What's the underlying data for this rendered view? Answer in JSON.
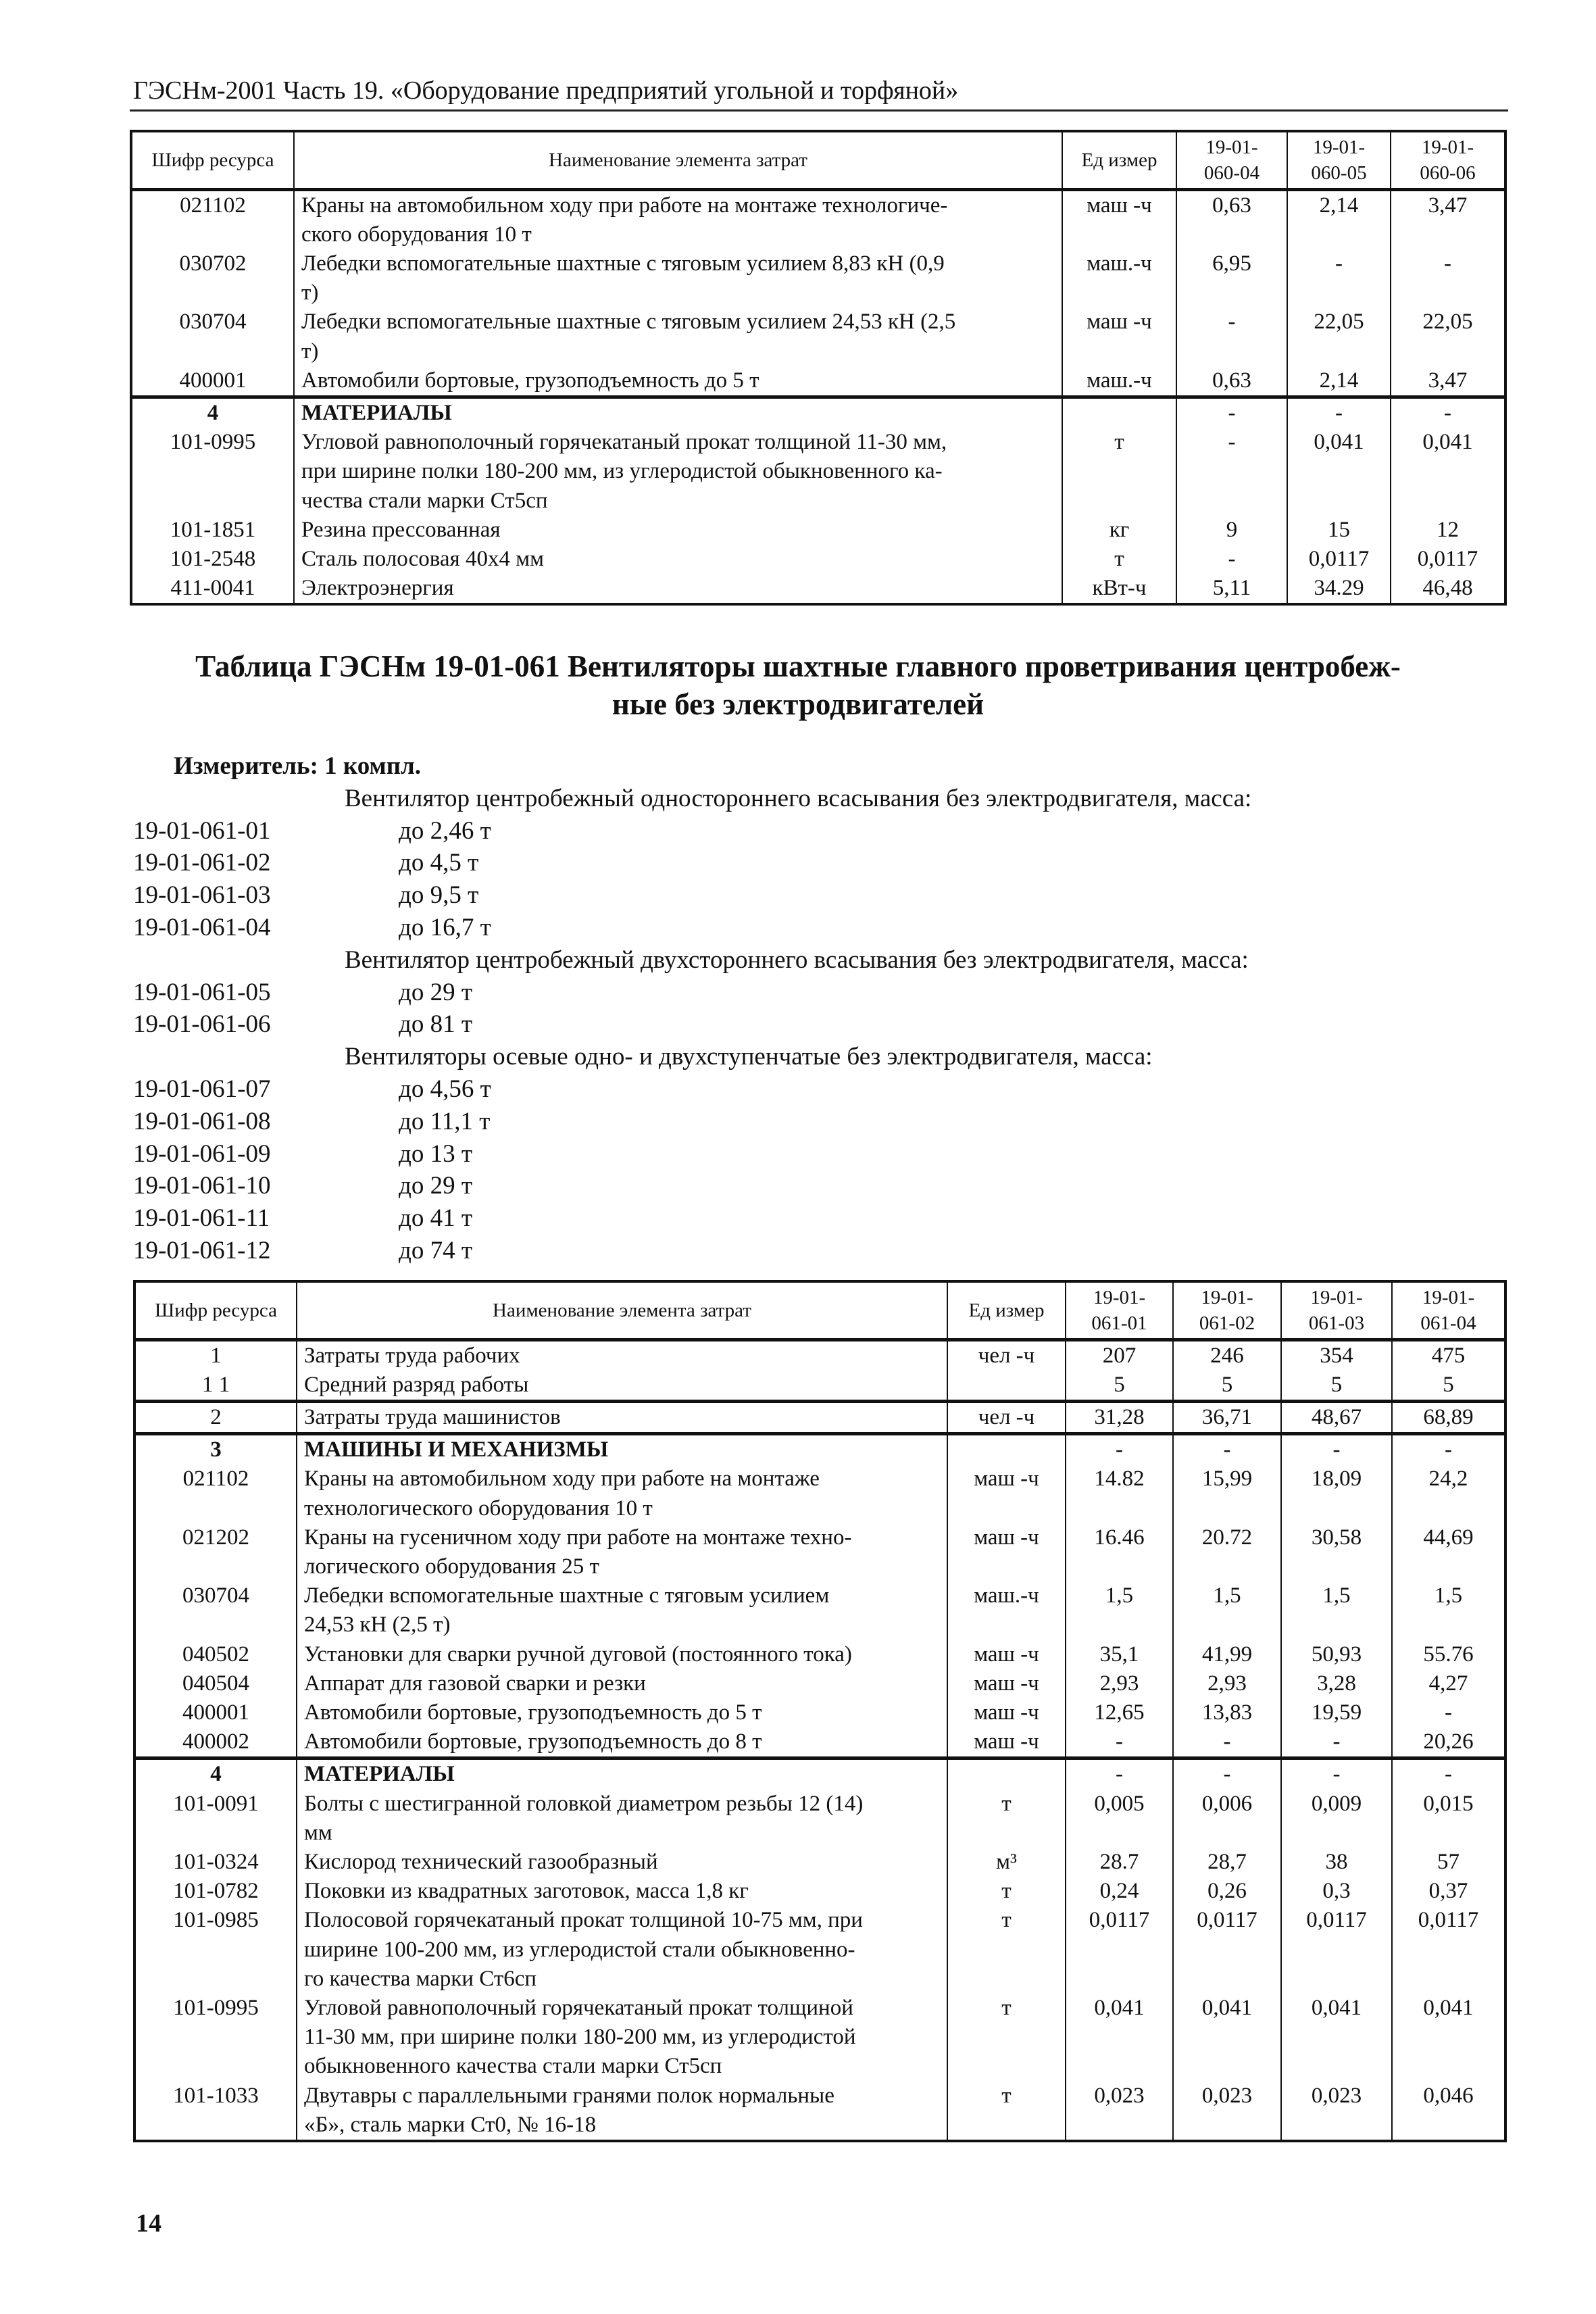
{
  "running_header": "ГЭСНм-2001 Часть 19. «Оборудование предприятий угольной и торфяной»",
  "table1": {
    "headers": [
      "Шифр ресурса",
      "Наименование элемента затрат",
      "Ед измер",
      "19-01-\n060-04",
      "19-01-\n060-05",
      "19-01-\n060-06"
    ],
    "groups": [
      [
        {
          "code": "021102",
          "name": "Краны на автомобильном ходу при работе на монтаже технологиче-\nского оборудования 10 т",
          "unit": "маш -ч",
          "values": [
            "0,63",
            "2,14",
            "3,47"
          ]
        },
        {
          "code": "030702",
          "name": "Лебедки вспомогательные шахтные с тяговым усилием 8,83 кН (0,9\nт)",
          "unit": "маш.-ч",
          "values": [
            "6,95",
            "-",
            "-"
          ]
        },
        {
          "code": "030704",
          "name": "Лебедки вспомогательные шахтные с тяговым усилием 24,53 кН (2,5\nт)",
          "unit": "маш -ч",
          "values": [
            "-",
            "22,05",
            "22,05"
          ]
        },
        {
          "code": "400001",
          "name": "Автомобили бортовые, грузоподъемность до 5 т",
          "unit": "маш.-ч",
          "values": [
            "0,63",
            "2,14",
            "3,47"
          ]
        }
      ],
      [
        {
          "code": "4",
          "name": "МАТЕРИАЛЫ",
          "unit": "",
          "values": [
            "-",
            "-",
            "-"
          ],
          "bold": true
        },
        {
          "code": "101-0995",
          "name": "Угловой равнополочный горячекатаный прокат толщиной 11-30 мм,\nпри ширине полки 180-200 мм, из углеродистой обыкновенного ка-\nчества стали марки Ст5сп",
          "unit": "т",
          "values": [
            "-",
            "0,041",
            "0,041"
          ]
        },
        {
          "code": "101-1851",
          "name": "Резина прессованная",
          "unit": "кг",
          "values": [
            "9",
            "15",
            "12"
          ]
        },
        {
          "code": "101-2548",
          "name": "Сталь полосовая 40х4 мм",
          "unit": "т",
          "values": [
            "-",
            "0,0117",
            "0,0117"
          ]
        },
        {
          "code": "411-0041",
          "name": "Электроэнергия",
          "unit": "кВт-ч",
          "values": [
            "5,11",
            "34.29",
            "46,48"
          ]
        }
      ]
    ]
  },
  "title": "Таблица ГЭСНм 19-01-061 Вентиляторы шахтные главного проветривания центробеж-\nные без электродвигателей",
  "measure": "Измеритель:  1 компл.",
  "list": [
    {
      "section": "Вентилятор центробежный одностороннего всасывания без электродвигателя, масса:"
    },
    {
      "code": "19-01-061-01",
      "value": "до 2,46 т"
    },
    {
      "code": "19-01-061-02",
      "value": "до 4,5 т"
    },
    {
      "code": "19-01-061-03",
      "value": "до 9,5 т"
    },
    {
      "code": "19-01-061-04",
      "value": "до 16,7 т"
    },
    {
      "section": "Вентилятор центробежный двухстороннего всасывания без электродвигателя, масса:"
    },
    {
      "code": "19-01-061-05",
      "value": "до 29 т"
    },
    {
      "code": "19-01-061-06",
      "value": "до 81 т"
    },
    {
      "section": "Вентиляторы осевые одно- и двухступенчатые без электродвигателя, масса:"
    },
    {
      "code": "19-01-061-07",
      "value": "до 4,56 т"
    },
    {
      "code": "19-01-061-08",
      "value": "до 11,1 т"
    },
    {
      "code": "19-01-061-09",
      "value": "до 13 т"
    },
    {
      "code": "19-01-061-10",
      "value": "до 29 т"
    },
    {
      "code": "19-01-061-11",
      "value": "до 41 т"
    },
    {
      "code": "19-01-061-12",
      "value": "до 74 т"
    }
  ],
  "table2": {
    "headers": [
      "Шифр ресурса",
      "Наименование элемента затрат",
      "Ед измер",
      "19-01-\n061-01",
      "19-01-\n061-02",
      "19-01-\n061-03",
      "19-01-\n061-04"
    ],
    "groups": [
      [
        {
          "code": "1",
          "name": "Затраты труда рабочих",
          "unit": "чел -ч",
          "values": [
            "207",
            "246",
            "354",
            "475"
          ]
        },
        {
          "code": "1 1",
          "name": "Средний разряд работы",
          "unit": "",
          "values": [
            "5",
            "5",
            "5",
            "5"
          ]
        }
      ],
      [
        {
          "code": "2",
          "name": "Затраты труда машинистов",
          "unit": "чел -ч",
          "values": [
            "31,28",
            "36,71",
            "48,67",
            "68,89"
          ]
        }
      ],
      [
        {
          "code": "3",
          "name": "МАШИНЫ И МЕХАНИЗМЫ",
          "unit": "",
          "values": [
            "-",
            "-",
            "-",
            "-"
          ],
          "bold": true
        },
        {
          "code": "021102",
          "name": "Краны на автомобильном ходу при работе на монтаже\nтехнологического оборудования 10 т",
          "unit": "маш -ч",
          "values": [
            "14.82",
            "15,99",
            "18,09",
            "24,2"
          ]
        },
        {
          "code": "021202",
          "name": "Краны на гусеничном ходу при работе на монтаже техно-\nлогического оборудования 25 т",
          "unit": "маш -ч",
          "values": [
            "16.46",
            "20.72",
            "30,58",
            "44,69"
          ]
        },
        {
          "code": "030704",
          "name": "Лебедки вспомогательные шахтные с тяговым усилием\n24,53 кН (2,5 т)",
          "unit": "маш.-ч",
          "values": [
            "1,5",
            "1,5",
            "1,5",
            "1,5"
          ]
        },
        {
          "code": "040502",
          "name": "Установки для сварки ручной дуговой (постоянного тока)",
          "unit": "маш -ч",
          "values": [
            "35,1",
            "41,99",
            "50,93",
            "55.76"
          ]
        },
        {
          "code": "040504",
          "name": "Аппарат для газовой сварки и резки",
          "unit": "маш -ч",
          "values": [
            "2,93",
            "2,93",
            "3,28",
            "4,27"
          ]
        },
        {
          "code": "400001",
          "name": "Автомобили бортовые, грузоподъемность до 5 т",
          "unit": "маш -ч",
          "values": [
            "12,65",
            "13,83",
            "19,59",
            "-"
          ]
        },
        {
          "code": "400002",
          "name": "Автомобили бортовые, грузоподъемность до 8 т",
          "unit": "маш -ч",
          "values": [
            "-",
            "-",
            "-",
            "20,26"
          ]
        }
      ],
      [
        {
          "code": "4",
          "name": "МАТЕРИАЛЫ",
          "unit": "",
          "values": [
            "-",
            "-",
            "-",
            "-"
          ],
          "bold": true
        },
        {
          "code": "101-0091",
          "name": "Болты с шестигранной головкой диаметром резьбы 12 (14)\nмм",
          "unit": "т",
          "values": [
            "0,005",
            "0,006",
            "0,009",
            "0,015"
          ]
        },
        {
          "code": "101-0324",
          "name": "Кислород технический газообразный",
          "unit": "м³",
          "values": [
            "28.7",
            "28,7",
            "38",
            "57"
          ]
        },
        {
          "code": "101-0782",
          "name": "Поковки из квадратных заготовок, масса 1,8 кг",
          "unit": "т",
          "values": [
            "0,24",
            "0,26",
            "0,3",
            "0,37"
          ]
        },
        {
          "code": "101-0985",
          "name": "Полосовой горячекатаный прокат толщиной 10-75 мм, при\nширине 100-200 мм, из углеродистой стали обыкновенно-\nго качества марки Ст6сп",
          "unit": "т",
          "values": [
            "0,0117",
            "0,0117",
            "0,0117",
            "0,0117"
          ]
        },
        {
          "code": "101-0995",
          "name": "Угловой равнополочный горячекатаный прокат толщиной\n11-30 мм, при ширине полки 180-200 мм, из углеродистой\nобыкновенного качества стали марки Ст5сп",
          "unit": "т",
          "values": [
            "0,041",
            "0,041",
            "0,041",
            "0,041"
          ]
        },
        {
          "code": "101-1033",
          "name": "Двутавры с параллельными гранями полок нормальные\n«Б», сталь марки Ст0, № 16-18",
          "unit": "т",
          "values": [
            "0,023",
            "0,023",
            "0,023",
            "0,046"
          ]
        }
      ]
    ]
  },
  "page_number": "14"
}
